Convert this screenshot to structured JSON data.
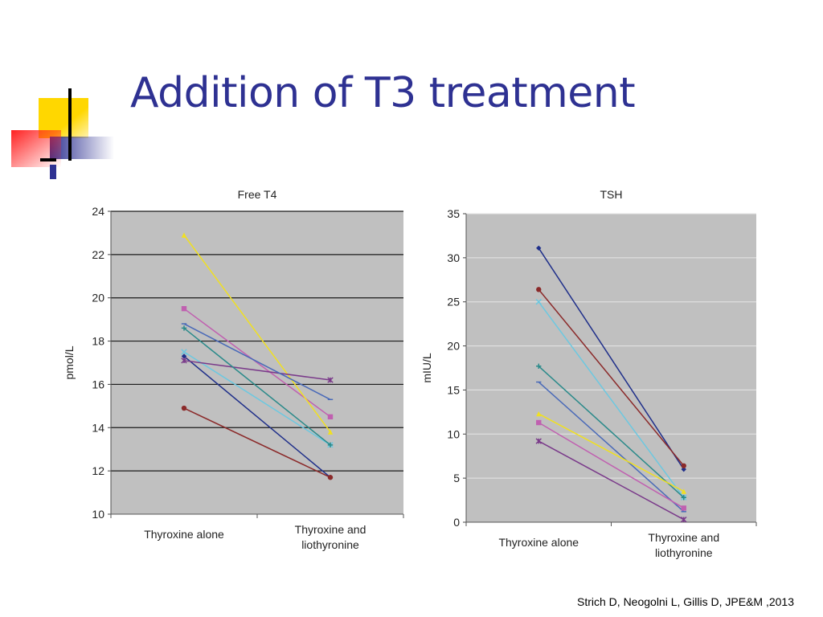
{
  "slide": {
    "title": "Addition of T3 treatment",
    "citation": "Strich D, Neogolni L, Gillis D, JPE&M ,2013",
    "title_color": "#2e3192"
  },
  "chart_data": [
    {
      "type": "line",
      "title": "Free T4",
      "ylabel": "pmol/L",
      "xlabel": "",
      "categories": [
        "Thyroxine alone",
        "Thyroxine and liothyronine"
      ],
      "ylim": [
        10,
        24
      ],
      "yticks": [
        10,
        12,
        14,
        16,
        18,
        20,
        22,
        24
      ],
      "grid": true,
      "legend": "none",
      "series": [
        {
          "values": [
            17.3,
            11.7
          ],
          "color": "#1f2f8a",
          "marker": "diamond"
        },
        {
          "values": [
            19.5,
            14.5
          ],
          "color": "#c060b0",
          "marker": "square"
        },
        {
          "values": [
            22.9,
            13.8
          ],
          "color": "#f0e020",
          "marker": "triangle"
        },
        {
          "values": [
            17.5,
            13.2
          ],
          "color": "#6cc8e0",
          "marker": "x"
        },
        {
          "values": [
            17.1,
            16.2
          ],
          "color": "#7a3a8a",
          "marker": "star"
        },
        {
          "values": [
            14.9,
            11.7
          ],
          "color": "#8b2a2a",
          "marker": "circle"
        },
        {
          "values": [
            18.6,
            13.2
          ],
          "color": "#2a8a8a",
          "marker": "plus"
        },
        {
          "values": [
            18.8,
            15.3
          ],
          "color": "#4a6ab8",
          "marker": "dash"
        }
      ]
    },
    {
      "type": "line",
      "title": "TSH",
      "ylabel": "mIU/L",
      "xlabel": "",
      "categories": [
        "Thyroxine alone",
        "Thyroxine and liothyronine"
      ],
      "ylim": [
        0,
        35
      ],
      "yticks": [
        0,
        5,
        10,
        15,
        20,
        25,
        30,
        35
      ],
      "grid": true,
      "legend": "none",
      "series": [
        {
          "values": [
            31.1,
            6.0
          ],
          "color": "#1f2f8a",
          "marker": "diamond"
        },
        {
          "values": [
            26.4,
            6.4
          ],
          "color": "#8b2a2a",
          "marker": "circle"
        },
        {
          "values": [
            25.0,
            2.8
          ],
          "color": "#6cc8e0",
          "marker": "x"
        },
        {
          "values": [
            17.7,
            2.8
          ],
          "color": "#2a8a8a",
          "marker": "plus"
        },
        {
          "values": [
            15.9,
            1.2
          ],
          "color": "#4a6ab8",
          "marker": "dash"
        },
        {
          "values": [
            12.3,
            3.5
          ],
          "color": "#f0e020",
          "marker": "triangle"
        },
        {
          "values": [
            11.3,
            1.6
          ],
          "color": "#c060b0",
          "marker": "square"
        },
        {
          "values": [
            9.2,
            0.3
          ],
          "color": "#7a3a8a",
          "marker": "star"
        }
      ]
    }
  ]
}
